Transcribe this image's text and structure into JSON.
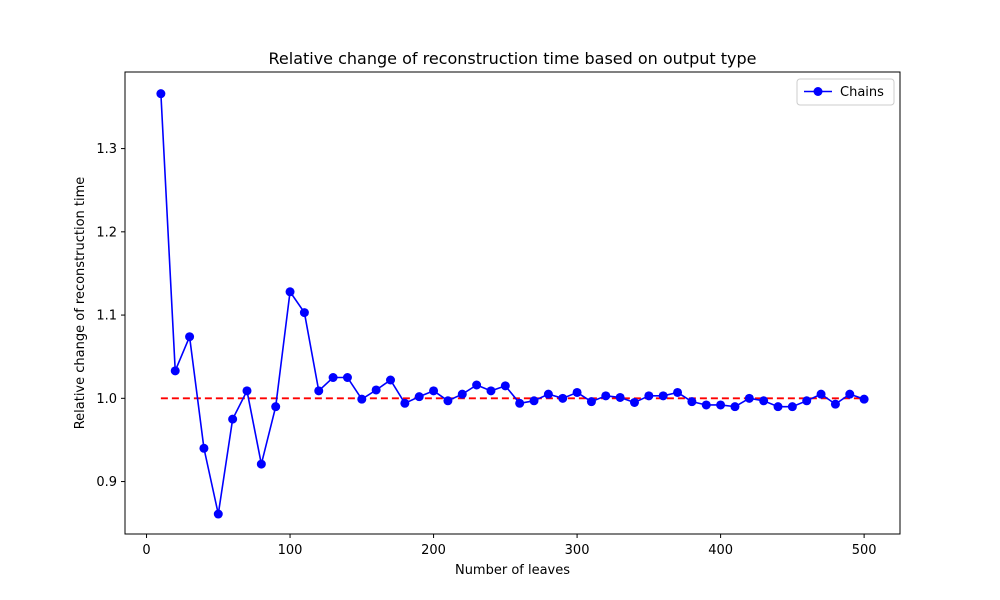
{
  "chart_data": {
    "type": "line",
    "title": "Relative change of reconstruction time based on output type",
    "xlabel": "Number of leaves",
    "ylabel": "Relative change of reconstruction time",
    "xlim": [
      -15,
      525
    ],
    "ylim": [
      0.837,
      1.392
    ],
    "xticks": [
      0,
      100,
      200,
      300,
      400,
      500
    ],
    "yticks": [
      0.9,
      1.0,
      1.1,
      1.2,
      1.3
    ],
    "ytick_labels": [
      "0.9",
      "1.0",
      "1.1",
      "1.2",
      "1.3"
    ],
    "grid": false,
    "legend": {
      "position": "top-right",
      "entries": [
        "Chains"
      ]
    },
    "series": [
      {
        "name": "Chains",
        "color": "#0000ff",
        "marker": "circle",
        "x": [
          10,
          20,
          30,
          40,
          50,
          60,
          70,
          80,
          90,
          100,
          110,
          120,
          130,
          140,
          150,
          160,
          170,
          180,
          190,
          200,
          210,
          220,
          230,
          240,
          250,
          260,
          270,
          280,
          290,
          300,
          310,
          320,
          330,
          340,
          350,
          360,
          370,
          380,
          390,
          400,
          410,
          420,
          430,
          440,
          450,
          460,
          470,
          480,
          490,
          500
        ],
        "y": [
          1.366,
          1.033,
          1.074,
          0.94,
          0.861,
          0.975,
          1.009,
          0.921,
          0.99,
          1.128,
          1.103,
          1.009,
          1.025,
          1.025,
          0.999,
          1.01,
          1.022,
          0.994,
          1.002,
          1.009,
          0.997,
          1.005,
          1.016,
          1.009,
          1.015,
          0.994,
          0.997,
          1.005,
          1.0,
          1.007,
          0.996,
          1.003,
          1.001,
          0.995,
          1.003,
          1.003,
          1.007,
          0.996,
          0.992,
          0.992,
          0.99,
          1.0,
          0.997,
          0.99,
          0.99,
          0.997,
          1.005,
          0.993,
          1.005,
          0.999
        ]
      }
    ],
    "reference_line": {
      "y": 1.0,
      "x": [
        10,
        500
      ],
      "color": "#ff0000",
      "style": "dashed"
    }
  }
}
